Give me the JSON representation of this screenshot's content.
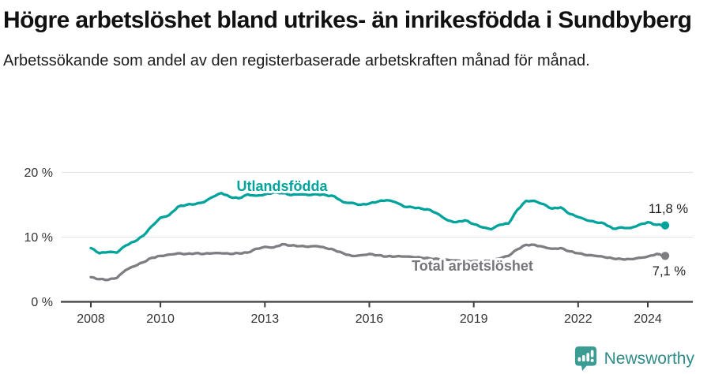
{
  "header": {
    "title": "Högre arbetslöshet bland utrikes- än inrikesfödda i Sundbyberg",
    "subtitle": "Arbetssökande som andel av den registerbaserade arbetskraften månad för månad."
  },
  "footer": {
    "brand": "Newsworthy",
    "brand_color": "#2E8B88",
    "logo_icon": "bar-chart-speech-bubble-icon",
    "logo_color": "#3B9C94"
  },
  "chart_data": {
    "type": "line",
    "title": "Högre arbetslöshet bland utrikes- än inrikesfödda i Sundbyberg",
    "subtitle": "Arbetssökande som andel av den registerbaserade arbetskraften månad för månad.",
    "x_label": "",
    "y_label": "",
    "y_unit": "%",
    "ylim": [
      0,
      20
    ],
    "grid": "horizontal",
    "legend": "inline-labels",
    "xticks": [
      2008,
      2010,
      2013,
      2016,
      2019,
      2022,
      2024
    ],
    "yticks": [
      {
        "value": 0,
        "label": "0 %"
      },
      {
        "value": 10,
        "label": "10 %"
      },
      {
        "value": 20,
        "label": "20 %"
      }
    ],
    "x_years": [
      2008,
      2008.25,
      2008.5,
      2008.75,
      2009,
      2009.25,
      2009.5,
      2009.75,
      2010,
      2010.25,
      2010.5,
      2010.75,
      2011,
      2011.25,
      2011.5,
      2011.75,
      2012,
      2012.25,
      2012.5,
      2012.75,
      2013,
      2013.25,
      2013.5,
      2013.75,
      2014,
      2014.25,
      2014.5,
      2014.75,
      2015,
      2015.25,
      2015.5,
      2015.75,
      2016,
      2016.25,
      2016.5,
      2016.75,
      2017,
      2017.25,
      2017.5,
      2017.75,
      2018,
      2018.25,
      2018.5,
      2018.75,
      2019,
      2019.25,
      2019.5,
      2019.75,
      2020,
      2020.25,
      2020.5,
      2020.75,
      2021,
      2021.25,
      2021.5,
      2021.75,
      2022,
      2022.25,
      2022.5,
      2022.75,
      2023,
      2023.25,
      2023.5,
      2023.75,
      2024,
      2024.25,
      2024.5
    ],
    "series": [
      {
        "name": "Utlandsfödda",
        "color": "#00A39B",
        "end_label": "11,8 %",
        "end_value": 11.8,
        "values": [
          8.3,
          7.5,
          7.7,
          7.6,
          8.7,
          9.3,
          10.2,
          11.7,
          13.0,
          13.4,
          14.7,
          15.0,
          15.1,
          15.4,
          16.2,
          16.8,
          16.2,
          16.0,
          16.6,
          16.4,
          16.6,
          16.9,
          16.8,
          16.5,
          16.6,
          16.5,
          16.6,
          16.5,
          16.3,
          15.4,
          15.3,
          15.0,
          15.2,
          15.5,
          15.7,
          15.4,
          14.7,
          14.6,
          14.4,
          14.2,
          13.5,
          12.6,
          12.3,
          12.6,
          12.0,
          11.5,
          11.2,
          11.9,
          12.1,
          14.2,
          15.6,
          15.6,
          15.1,
          14.4,
          14.6,
          13.6,
          13.1,
          12.6,
          12.3,
          12.1,
          11.3,
          11.5,
          11.4,
          11.9,
          12.3,
          11.9,
          11.8
        ]
      },
      {
        "name": "Total arbetslöshet",
        "color": "#7E7E82",
        "label_color": "#75757A",
        "end_label": "7,1 %",
        "end_value": 7.1,
        "values": [
          3.8,
          3.5,
          3.4,
          3.7,
          4.9,
          5.5,
          6.1,
          6.8,
          7.1,
          7.3,
          7.5,
          7.4,
          7.5,
          7.4,
          7.5,
          7.5,
          7.4,
          7.5,
          7.6,
          8.2,
          8.5,
          8.4,
          8.9,
          8.7,
          8.6,
          8.5,
          8.6,
          8.3,
          8.0,
          7.5,
          7.1,
          7.2,
          7.4,
          7.2,
          7.0,
          7.0,
          7.0,
          6.9,
          6.8,
          6.7,
          6.6,
          6.5,
          6.4,
          6.3,
          6.3,
          6.2,
          6.4,
          6.7,
          7.1,
          8.1,
          8.8,
          8.8,
          8.5,
          8.2,
          8.3,
          7.8,
          7.5,
          7.2,
          7.1,
          6.9,
          6.7,
          6.6,
          6.6,
          6.8,
          7.0,
          7.4,
          7.1
        ]
      }
    ]
  }
}
